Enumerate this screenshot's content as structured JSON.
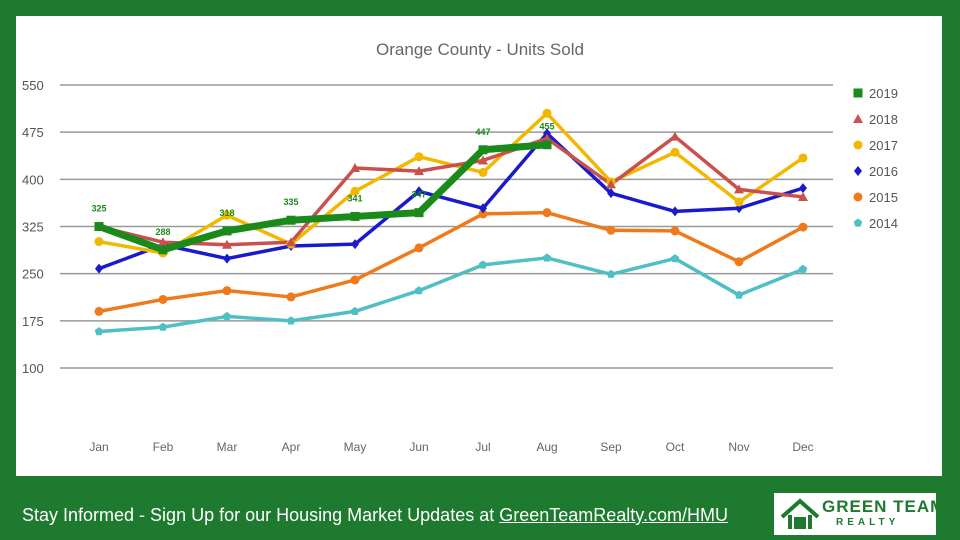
{
  "chart_data": {
    "type": "line",
    "title": "Orange County - Units Sold",
    "categories": [
      "Jan",
      "Feb",
      "Mar",
      "Apr",
      "May",
      "Jun",
      "Jul",
      "Aug",
      "Sep",
      "Oct",
      "Nov",
      "Dec"
    ],
    "y_ticks": [
      100,
      175,
      250,
      325,
      400,
      475,
      550
    ],
    "ylim": [
      100,
      550
    ],
    "grid": true,
    "legend_position": "right",
    "series": [
      {
        "name": "2019",
        "color": "#1a8a1a",
        "marker": "square",
        "values": [
          325,
          288,
          318,
          335,
          341,
          347,
          447,
          455,
          null,
          null,
          null,
          null
        ],
        "data_labels": [
          "325",
          "288",
          "318",
          "335",
          "341",
          "347",
          "447",
          "455"
        ]
      },
      {
        "name": "2018",
        "color": "#c9504c",
        "marker": "triangle",
        "values": [
          325,
          300,
          296,
          300,
          418,
          413,
          430,
          465,
          392,
          468,
          384,
          372
        ]
      },
      {
        "name": "2017",
        "color": "#f2b800",
        "marker": "circle",
        "values": [
          301,
          283,
          343,
          297,
          381,
          436,
          411,
          505,
          396,
          443,
          364,
          434
        ]
      },
      {
        "name": "2016",
        "color": "#1a1acc",
        "marker": "diamond",
        "values": [
          258,
          296,
          274,
          294,
          297,
          381,
          354,
          473,
          378,
          349,
          354,
          386
        ]
      },
      {
        "name": "2015",
        "color": "#f07a1a",
        "marker": "circle",
        "values": [
          190,
          209,
          223,
          213,
          240,
          291,
          345,
          347,
          319,
          318,
          269,
          324
        ]
      },
      {
        "name": "2014",
        "color": "#4fbfc4",
        "marker": "pentagon",
        "values": [
          158,
          165,
          182,
          175,
          190,
          223,
          264,
          275,
          249,
          274,
          216,
          257
        ]
      }
    ]
  },
  "footer": {
    "text": "Stay Informed - Sign Up for our Housing Market Updates at ",
    "link": "GreenTeamRealty.com/HMU"
  },
  "logo": {
    "line1": "GREEN TEAM",
    "line2": "REALTY"
  }
}
